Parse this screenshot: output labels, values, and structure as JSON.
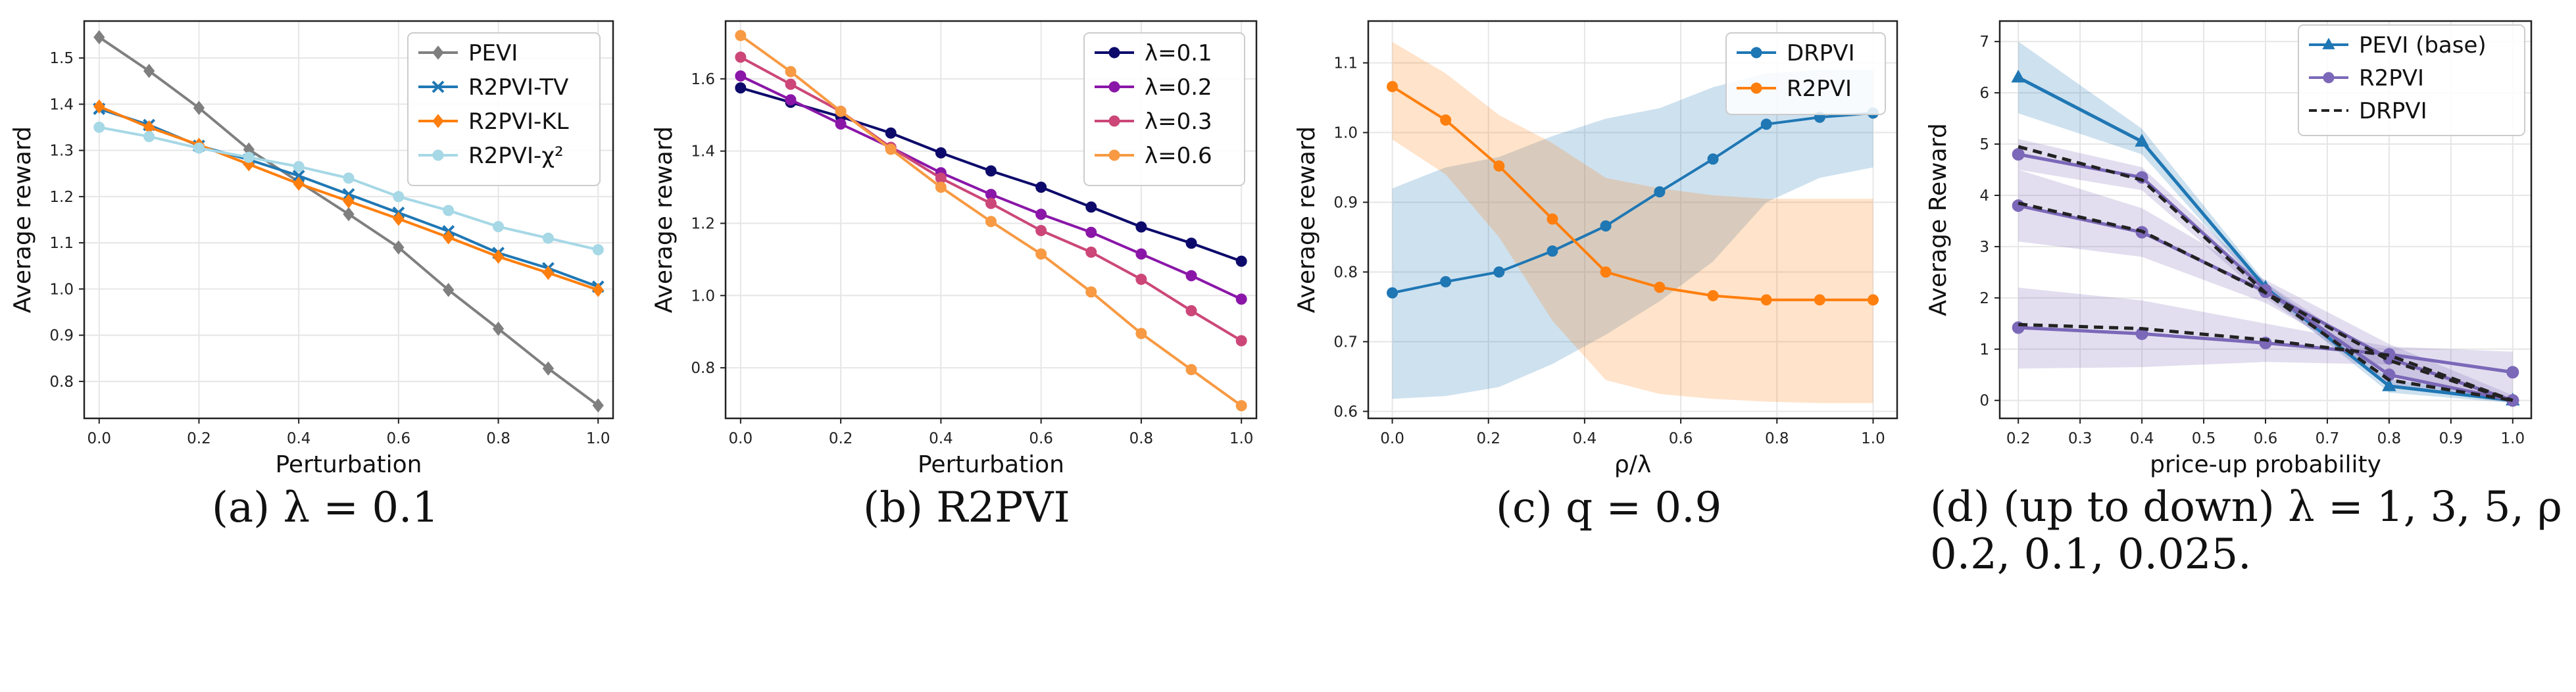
{
  "captions": {
    "a": "(a) λ = 0.1",
    "b": "(b) R2PVI",
    "c": "(c) q = 0.9",
    "d_line1": "(d) (up to down) λ = 1, 3, 5, ρ =",
    "d_line2": "0.2, 0.1, 0.025."
  },
  "chart_data": [
    {
      "id": "a",
      "type": "line",
      "xlabel": "Perturbation",
      "ylabel": "Average reward",
      "xlim": [
        -0.03,
        1.03
      ],
      "ylim": [
        0.72,
        1.58
      ],
      "xticks": [
        0.0,
        0.2,
        0.4,
        0.6,
        0.8,
        1.0
      ],
      "yticks": [
        0.8,
        0.9,
        1.0,
        1.1,
        1.2,
        1.3,
        1.4,
        1.5
      ],
      "grid": true,
      "legend": "top-right",
      "x": [
        0.0,
        0.1,
        0.2,
        0.3,
        0.4,
        0.5,
        0.6,
        0.7,
        0.8,
        0.9,
        1.0
      ],
      "series": [
        {
          "name": "PEVI",
          "color": "#7f7f7f",
          "marker": "diamond",
          "values": [
            1.545,
            1.472,
            1.392,
            1.302,
            1.232,
            1.162,
            1.09,
            0.998,
            0.914,
            0.828,
            0.748
          ]
        },
        {
          "name": "R2PVI-TV",
          "color": "#1f77b4",
          "marker": "x",
          "values": [
            1.39,
            1.355,
            1.31,
            1.28,
            1.245,
            1.205,
            1.165,
            1.125,
            1.078,
            1.045,
            1.005
          ]
        },
        {
          "name": "R2PVI-KL",
          "color": "#ff7f0e",
          "marker": "diamond",
          "values": [
            1.395,
            1.35,
            1.312,
            1.27,
            1.228,
            1.19,
            1.152,
            1.112,
            1.07,
            1.035,
            0.998
          ]
        },
        {
          "name": "R2PVI-χ²",
          "color": "#a6d8e6",
          "marker": "circle",
          "values": [
            1.35,
            1.33,
            1.305,
            1.285,
            1.265,
            1.24,
            1.2,
            1.17,
            1.135,
            1.11,
            1.085
          ]
        }
      ]
    },
    {
      "id": "b",
      "type": "line",
      "xlabel": "Perturbation",
      "ylabel": "Average reward",
      "xlim": [
        -0.03,
        1.03
      ],
      "ylim": [
        0.66,
        1.76
      ],
      "xticks": [
        0.0,
        0.2,
        0.4,
        0.6,
        0.8,
        1.0
      ],
      "yticks": [
        0.8,
        1.0,
        1.2,
        1.4,
        1.6
      ],
      "grid": true,
      "legend": "top-right",
      "x": [
        0.0,
        0.1,
        0.2,
        0.3,
        0.4,
        0.5,
        0.6,
        0.7,
        0.8,
        0.9,
        1.0
      ],
      "series": [
        {
          "name": "λ=0.1",
          "color": "#0d0a6b",
          "marker": "circle",
          "values": [
            1.575,
            1.535,
            1.495,
            1.45,
            1.395,
            1.345,
            1.3,
            1.245,
            1.19,
            1.145,
            1.095
          ]
        },
        {
          "name": "λ=0.2",
          "color": "#8a16a8",
          "marker": "circle",
          "values": [
            1.608,
            1.542,
            1.475,
            1.41,
            1.34,
            1.28,
            1.225,
            1.175,
            1.115,
            1.055,
            0.99
          ]
        },
        {
          "name": "λ=0.3",
          "color": "#cc4778",
          "marker": "circle",
          "values": [
            1.66,
            1.585,
            1.51,
            1.41,
            1.325,
            1.255,
            1.18,
            1.12,
            1.045,
            0.958,
            0.875
          ]
        },
        {
          "name": "λ=0.6",
          "color": "#f79a43",
          "marker": "circle",
          "values": [
            1.72,
            1.62,
            1.51,
            1.405,
            1.3,
            1.205,
            1.115,
            1.01,
            0.895,
            0.795,
            0.695
          ]
        }
      ]
    },
    {
      "id": "c",
      "type": "line",
      "xlabel": "ρ/λ",
      "ylabel": "Average reward",
      "xlim": [
        -0.05,
        1.05
      ],
      "ylim": [
        0.59,
        1.16
      ],
      "xticks": [
        0.0,
        0.2,
        0.4,
        0.6,
        0.8,
        1.0
      ],
      "yticks": [
        0.6,
        0.7,
        0.8,
        0.9,
        1.0,
        1.1
      ],
      "grid": true,
      "legend": "top-right",
      "x": [
        0.0,
        0.111,
        0.222,
        0.333,
        0.444,
        0.556,
        0.667,
        0.778,
        0.889,
        1.0
      ],
      "series": [
        {
          "name": "DRPVI",
          "color": "#1f77b4",
          "marker": "circle",
          "values": [
            0.77,
            0.786,
            0.8,
            0.83,
            0.866,
            0.915,
            0.962,
            1.012,
            1.022,
            1.028
          ],
          "lower": [
            0.618,
            0.622,
            0.635,
            0.668,
            0.71,
            0.758,
            0.815,
            0.9,
            0.935,
            0.95
          ],
          "upper": [
            0.92,
            0.95,
            0.965,
            0.995,
            1.02,
            1.035,
            1.065,
            1.085,
            1.09,
            1.09
          ]
        },
        {
          "name": "R2PVI",
          "color": "#ff7f0e",
          "marker": "circle",
          "values": [
            1.066,
            1.018,
            0.952,
            0.876,
            0.8,
            0.778,
            0.766,
            0.76,
            0.76,
            0.76
          ],
          "lower": [
            0.99,
            0.94,
            0.85,
            0.73,
            0.645,
            0.625,
            0.618,
            0.614,
            0.612,
            0.612
          ],
          "upper": [
            1.13,
            1.085,
            1.025,
            0.985,
            0.935,
            0.92,
            0.91,
            0.905,
            0.905,
            0.905
          ]
        }
      ]
    },
    {
      "id": "d",
      "type": "line",
      "xlabel": "price-up probability",
      "ylabel": "Average Reward",
      "xlim": [
        0.17,
        1.03
      ],
      "ylim": [
        -0.35,
        7.4
      ],
      "xticks": [
        0.2,
        0.3,
        0.4,
        0.5,
        0.6,
        0.7,
        0.8,
        0.9,
        1.0
      ],
      "yticks": [
        0,
        1,
        2,
        3,
        4,
        5,
        6,
        7
      ],
      "grid": true,
      "legend": "top-right",
      "x": [
        0.2,
        0.4,
        0.6,
        0.8,
        1.0
      ],
      "legend_entries": [
        {
          "name": "PEVI (base)",
          "color": "#1f77b4",
          "marker": "triangle",
          "dash": false
        },
        {
          "name": "R2PVI",
          "color": "#7b68b8",
          "marker": "circle",
          "dash": false
        },
        {
          "name": "DRPVI",
          "color": "#222222",
          "marker": "none",
          "dash": true
        }
      ],
      "series": [
        {
          "name": "PEVI (base)",
          "color": "#1f77b4",
          "marker": "triangle",
          "dash": false,
          "values": [
            6.3,
            5.05,
            2.2,
            0.28,
            0.0
          ],
          "lower": [
            5.6,
            4.8,
            2.1,
            0.15,
            -0.05
          ],
          "upper": [
            7.0,
            5.3,
            2.3,
            0.42,
            0.05
          ]
        },
        {
          "name": "R2PVI λ=1",
          "color": "#7b68b8",
          "marker": "circle",
          "dash": false,
          "values": [
            4.8,
            4.35,
            2.15,
            0.5,
            0.0
          ],
          "lower": [
            4.5,
            4.1,
            2.0,
            0.3,
            -0.05
          ],
          "upper": [
            5.1,
            4.55,
            2.3,
            0.7,
            0.05
          ]
        },
        {
          "name": "R2PVI λ=3",
          "color": "#7b68b8",
          "marker": "circle",
          "dash": false,
          "values": [
            3.8,
            3.28,
            2.12,
            0.82,
            0.0
          ],
          "lower": [
            3.1,
            2.8,
            1.9,
            0.55,
            -0.05
          ],
          "upper": [
            4.5,
            3.75,
            2.35,
            1.1,
            0.1
          ]
        },
        {
          "name": "R2PVI λ=5",
          "color": "#7b68b8",
          "marker": "circle",
          "dash": false,
          "values": [
            1.42,
            1.3,
            1.12,
            0.9,
            0.55
          ],
          "lower": [
            0.62,
            0.65,
            0.75,
            0.7,
            0.05
          ],
          "upper": [
            2.2,
            1.95,
            1.5,
            1.05,
            0.95
          ]
        },
        {
          "name": "DRPVI λ=1",
          "color": "#222222",
          "marker": "none",
          "dash": true,
          "values": [
            4.95,
            4.3,
            2.1,
            0.4,
            0.0
          ]
        },
        {
          "name": "DRPVI λ=3",
          "color": "#222222",
          "marker": "none",
          "dash": true,
          "values": [
            3.85,
            3.3,
            2.1,
            0.78,
            0.0
          ]
        },
        {
          "name": "DRPVI λ=5",
          "color": "#222222",
          "marker": "none",
          "dash": true,
          "values": [
            1.48,
            1.4,
            1.18,
            0.88,
            0.0
          ]
        }
      ]
    }
  ]
}
